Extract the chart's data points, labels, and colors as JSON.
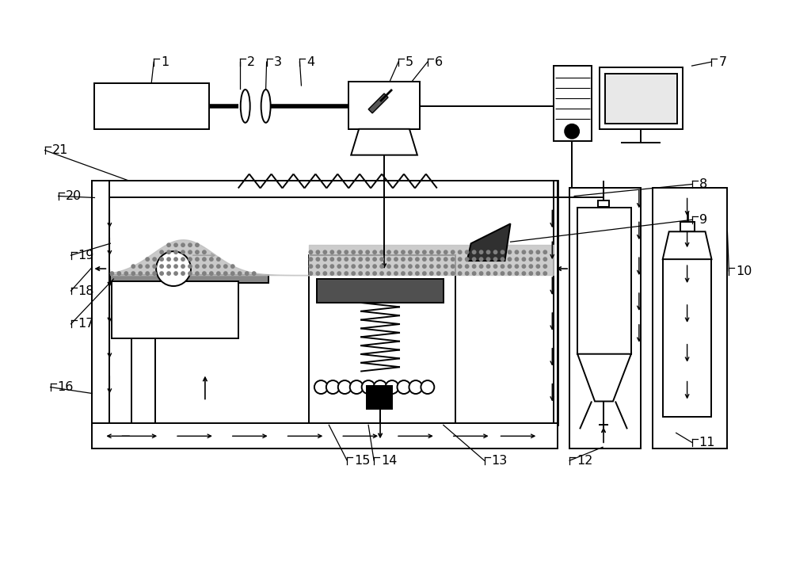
{
  "bg": "#ffffff",
  "lc": "#000000",
  "lw": 1.4,
  "fig_w": 10.0,
  "fig_h": 7.37,
  "dpi": 100
}
